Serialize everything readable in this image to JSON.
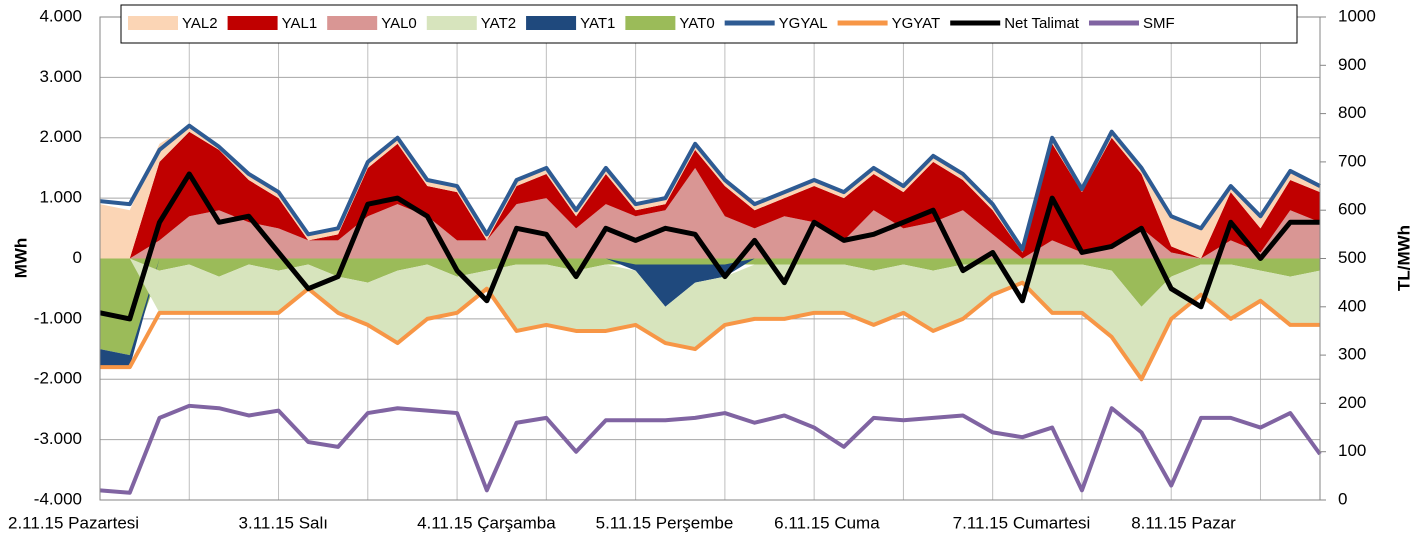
{
  "chart_data": {
    "type": "line",
    "y_label": "MWh",
    "y2_label": "TL/MWh",
    "categories": [
      "2.11.15 Pazartesi",
      null,
      null,
      null,
      null,
      null,
      "3.11.15 Salı",
      null,
      null,
      null,
      null,
      null,
      "4.11.15 Çarşamba",
      null,
      null,
      null,
      null,
      null,
      "5.11.15 Perşembe",
      null,
      null,
      null,
      null,
      null,
      "6.11.15 Cuma",
      null,
      null,
      null,
      null,
      null,
      "7.11.15 Cumartesi",
      null,
      null,
      null,
      null,
      null,
      "8.11.15 Pazar",
      null,
      null,
      null,
      null,
      null
    ],
    "ylim": [
      -4000,
      4000
    ],
    "yticks": [
      {
        "value": -4000,
        "label": "-4.000"
      },
      {
        "value": -3000,
        "label": "-3.000"
      },
      {
        "value": -2000,
        "label": "-2.000"
      },
      {
        "value": -1000,
        "label": "-1.000"
      },
      0,
      {
        "value": 1000,
        "label": "1.000"
      },
      {
        "value": 2000,
        "label": "2.000"
      },
      {
        "value": 3000,
        "label": "3.000"
      },
      {
        "value": 4000,
        "label": "4.000"
      }
    ],
    "y2lim": [
      0,
      1000
    ],
    "y2ticks": [
      0,
      100,
      200,
      300,
      400,
      500,
      600,
      700,
      800,
      900,
      1000
    ],
    "grid": true,
    "legend": "top",
    "series": [
      {
        "name": "YAL2",
        "type": "area",
        "color": "#fbd5b5",
        "values": [
          900,
          800,
          300,
          100,
          50,
          100,
          100,
          100,
          100,
          100,
          100,
          100,
          100,
          100,
          100,
          100,
          100,
          100,
          100,
          100,
          100,
          100,
          100,
          100,
          100,
          100,
          100,
          100,
          100,
          100,
          100,
          50,
          100,
          50,
          100,
          100,
          500,
          500,
          100,
          200,
          150,
          100
        ]
      },
      {
        "name": "YAL1",
        "type": "area",
        "color": "#c00000",
        "values": [
          0,
          0,
          1300,
          1400,
          1000,
          700,
          500,
          0,
          100,
          800,
          1000,
          500,
          800,
          0,
          300,
          400,
          200,
          500,
          100,
          100,
          300,
          500,
          300,
          300,
          600,
          700,
          600,
          600,
          1000,
          500,
          400,
          100,
          1600,
          1000,
          1800,
          900,
          100,
          0,
          800,
          400,
          500,
          500
        ]
      },
      {
        "name": "YAL0",
        "type": "area",
        "color": "#d99694",
        "values": [
          0,
          0,
          300,
          700,
          800,
          600,
          500,
          300,
          300,
          700,
          900,
          700,
          300,
          300,
          900,
          1000,
          500,
          900,
          700,
          800,
          1500,
          700,
          500,
          700,
          600,
          300,
          800,
          500,
          600,
          800,
          400,
          0,
          300,
          100,
          200,
          500,
          100,
          0,
          300,
          100,
          800,
          600
        ]
      },
      {
        "name": "YAT2",
        "type": "area",
        "color": "#d7e4bd",
        "values": [
          0,
          0,
          -700,
          -800,
          -600,
          -800,
          -700,
          -400,
          -600,
          -700,
          -1200,
          -900,
          -600,
          -300,
          -1100,
          -1000,
          -1000,
          -1100,
          -900,
          -600,
          -1100,
          -800,
          -900,
          -900,
          -800,
          -800,
          -900,
          -800,
          -1000,
          -900,
          -500,
          -300,
          -800,
          -800,
          -1100,
          -1200,
          -700,
          -500,
          -900,
          -500,
          -800,
          -900
        ]
      },
      {
        "name": "YAT1",
        "type": "area",
        "color": "#1f497d",
        "values": [
          -300,
          -200,
          0,
          0,
          0,
          0,
          0,
          0,
          0,
          0,
          0,
          0,
          0,
          0,
          0,
          0,
          0,
          0,
          -100,
          -700,
          -300,
          -200,
          0,
          0,
          0,
          0,
          0,
          0,
          0,
          0,
          0,
          0,
          0,
          0,
          0,
          0,
          0,
          0,
          0,
          0,
          0,
          0
        ]
      },
      {
        "name": "YAT0",
        "type": "area",
        "color": "#9bbb59",
        "values": [
          -1500,
          -1600,
          -200,
          -100,
          -300,
          -100,
          -200,
          -100,
          -300,
          -400,
          -200,
          -100,
          -300,
          -200,
          -100,
          -100,
          -200,
          -100,
          -100,
          -100,
          -100,
          -100,
          -100,
          -100,
          -100,
          -100,
          -200,
          -100,
          -200,
          -100,
          -100,
          -100,
          -100,
          -100,
          -200,
          -800,
          -300,
          -100,
          -100,
          -200,
          -300,
          -200
        ]
      },
      {
        "name": "YGYAL",
        "type": "line",
        "color": "#2e5b93",
        "values": [
          950,
          900,
          1800,
          2200,
          1850,
          1400,
          1100,
          400,
          500,
          1600,
          2000,
          1300,
          1200,
          400,
          1300,
          1500,
          800,
          1500,
          900,
          1000,
          1900,
          1300,
          900,
          1100,
          1300,
          1100,
          1500,
          1200,
          1700,
          1400,
          900,
          150,
          2000,
          1150,
          2100,
          1500,
          700,
          500,
          1200,
          700,
          1450,
          1200
        ]
      },
      {
        "name": "YGYAT",
        "type": "line",
        "color": "#f79646",
        "values": [
          -1800,
          -1800,
          -900,
          -900,
          -900,
          -900,
          -900,
          -500,
          -900,
          -1100,
          -1400,
          -1000,
          -900,
          -500,
          -1200,
          -1100,
          -1200,
          -1200,
          -1100,
          -1400,
          -1500,
          -1100,
          -1000,
          -1000,
          -900,
          -900,
          -1100,
          -900,
          -1200,
          -1000,
          -600,
          -400,
          -900,
          -900,
          -1300,
          -2000,
          -1000,
          -600,
          -1000,
          -700,
          -1100,
          -1100
        ]
      },
      {
        "name": "Net Talimat",
        "type": "line",
        "color": "#000000",
        "values": [
          -900,
          -1000,
          600,
          1400,
          600,
          700,
          100,
          -500,
          -300,
          900,
          1000,
          700,
          -200,
          -700,
          500,
          400,
          -300,
          500,
          300,
          500,
          400,
          -300,
          300,
          -400,
          600,
          300,
          400,
          600,
          800,
          -200,
          100,
          -700,
          1000,
          100,
          200,
          500,
          -500,
          -800,
          600,
          0,
          600,
          600
        ]
      },
      {
        "name": "SMF",
        "type": "line",
        "axis": "y2",
        "color": "#8064a2",
        "values": [
          20,
          15,
          170,
          195,
          190,
          175,
          185,
          120,
          110,
          180,
          190,
          185,
          180,
          20,
          160,
          170,
          100,
          165,
          165,
          165,
          170,
          180,
          160,
          175,
          150,
          110,
          170,
          165,
          170,
          175,
          140,
          130,
          150,
          20,
          190,
          140,
          30,
          170,
          170,
          150,
          180,
          95
        ]
      }
    ]
  }
}
